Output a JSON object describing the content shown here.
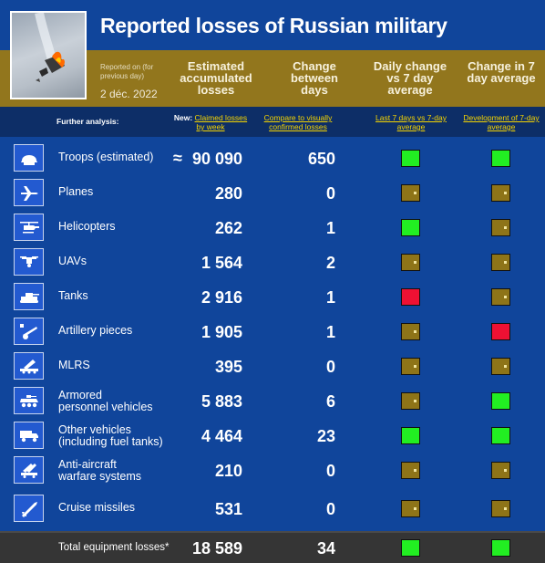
{
  "header": {
    "title": "Reported losses of Russian military",
    "reported_on": "Reported on (for previous day)",
    "date": "2 déc. 2022",
    "columns": {
      "estimated": "Estimated accumulated losses",
      "change": "Change between days",
      "daily": "Daily change vs 7 day average",
      "week": "Change in 7 day average"
    }
  },
  "analysis": {
    "label": "Further analysis:",
    "new_prefix": "New: ",
    "new_link": "Claimed losses by week",
    "compare_link": "Compare to visually confirmed losses",
    "last7_link": "Last 7 days vs 7-day average",
    "dev_link": "Development of 7-day average"
  },
  "rows": [
    {
      "name": "Troops (estimated)",
      "approx": "≈",
      "value": "90 090",
      "change": "650",
      "daily": "green",
      "week": "green",
      "icon": "helmet-icon"
    },
    {
      "name": "Planes",
      "value": "280",
      "change": "0",
      "daily": "neutral",
      "week": "neutral",
      "icon": "plane-icon"
    },
    {
      "name": "Helicopters",
      "value": "262",
      "change": "1",
      "daily": "green",
      "week": "neutral",
      "icon": "helicopter-icon"
    },
    {
      "name": "UAVs",
      "value": "1 564",
      "change": "2",
      "daily": "neutral",
      "week": "neutral",
      "icon": "drone-icon"
    },
    {
      "name": "Tanks",
      "value": "2 916",
      "change": "1",
      "daily": "red",
      "week": "neutral",
      "icon": "tank-icon"
    },
    {
      "name": "Artillery pieces",
      "value": "1 905",
      "change": "1",
      "daily": "neutral",
      "week": "red",
      "icon": "artillery-icon"
    },
    {
      "name": "MLRS",
      "value": "395",
      "change": "0",
      "daily": "neutral",
      "week": "neutral",
      "icon": "mlrs-icon"
    },
    {
      "name": "Armored",
      "name2": "personnel vehicles",
      "value": "5 883",
      "change": "6",
      "daily": "neutral",
      "week": "green",
      "icon": "apc-icon"
    },
    {
      "name": "Other vehicles",
      "name2": "(including fuel tanks)",
      "value": "4 464",
      "change": "23",
      "daily": "green",
      "week": "green",
      "icon": "truck-icon"
    },
    {
      "name": "Anti-aircraft",
      "name2": "warfare systems",
      "value": "210",
      "change": "0",
      "daily": "neutral",
      "week": "neutral",
      "icon": "anti-aircraft-icon"
    },
    {
      "name": "Cruise missiles",
      "value": "531",
      "change": "0",
      "daily": "neutral",
      "week": "neutral",
      "icon": "missile-icon"
    }
  ],
  "total": {
    "label": "Total equipment losses*",
    "value": "18 589",
    "change": "34",
    "daily": "green",
    "week": "green"
  },
  "colors": {
    "background": "#10459b",
    "gold_band": "#92761d",
    "green": "#22ee22",
    "red": "#ee1133",
    "neutral": "#8e7418",
    "link": "#f5d400"
  }
}
